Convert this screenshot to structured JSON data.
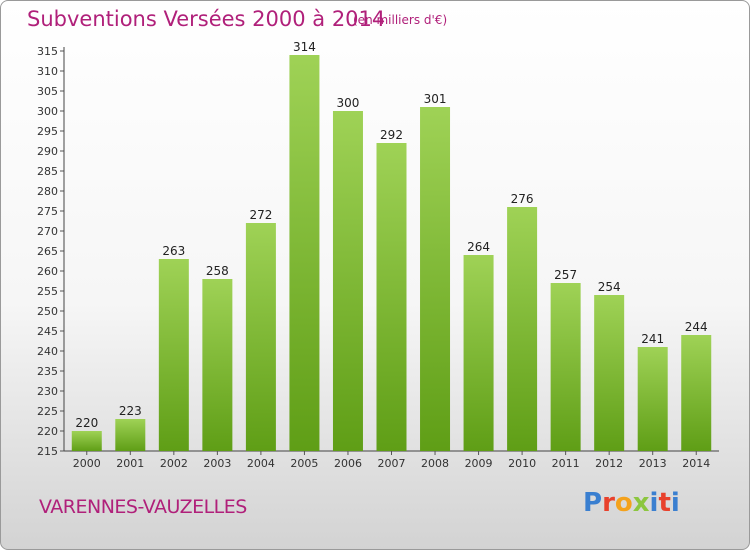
{
  "header": {
    "title": "Subventions Versées 2000 à 2014",
    "subtitle": "(en milliers d'€)"
  },
  "footer": {
    "commune": "VARENNES-VAUZELLES",
    "logo_text": "Proxiti"
  },
  "colors": {
    "accent": "#b0207a",
    "bar_top": "#9fd256",
    "bar_bottom": "#5f9e16",
    "logo": [
      "#3a7fd0",
      "#e8412c",
      "#f4a21c",
      "#8cc63f",
      "#3a7fd0",
      "#e8412c",
      "#3a7fd0"
    ]
  },
  "chart_data": {
    "type": "bar",
    "title": "Subventions Versées 2000 à 2014",
    "subtitle": "(en milliers d'€)",
    "categories": [
      "2000",
      "2001",
      "2002",
      "2003",
      "2004",
      "2005",
      "2006",
      "2007",
      "2008",
      "2009",
      "2010",
      "2011",
      "2012",
      "2013",
      "2014"
    ],
    "values": [
      220,
      223,
      263,
      258,
      272,
      314,
      300,
      292,
      301,
      264,
      276,
      257,
      254,
      241,
      244
    ],
    "ylim": [
      215,
      315
    ],
    "ytick_step": 5,
    "grid": false,
    "legend": "none"
  }
}
